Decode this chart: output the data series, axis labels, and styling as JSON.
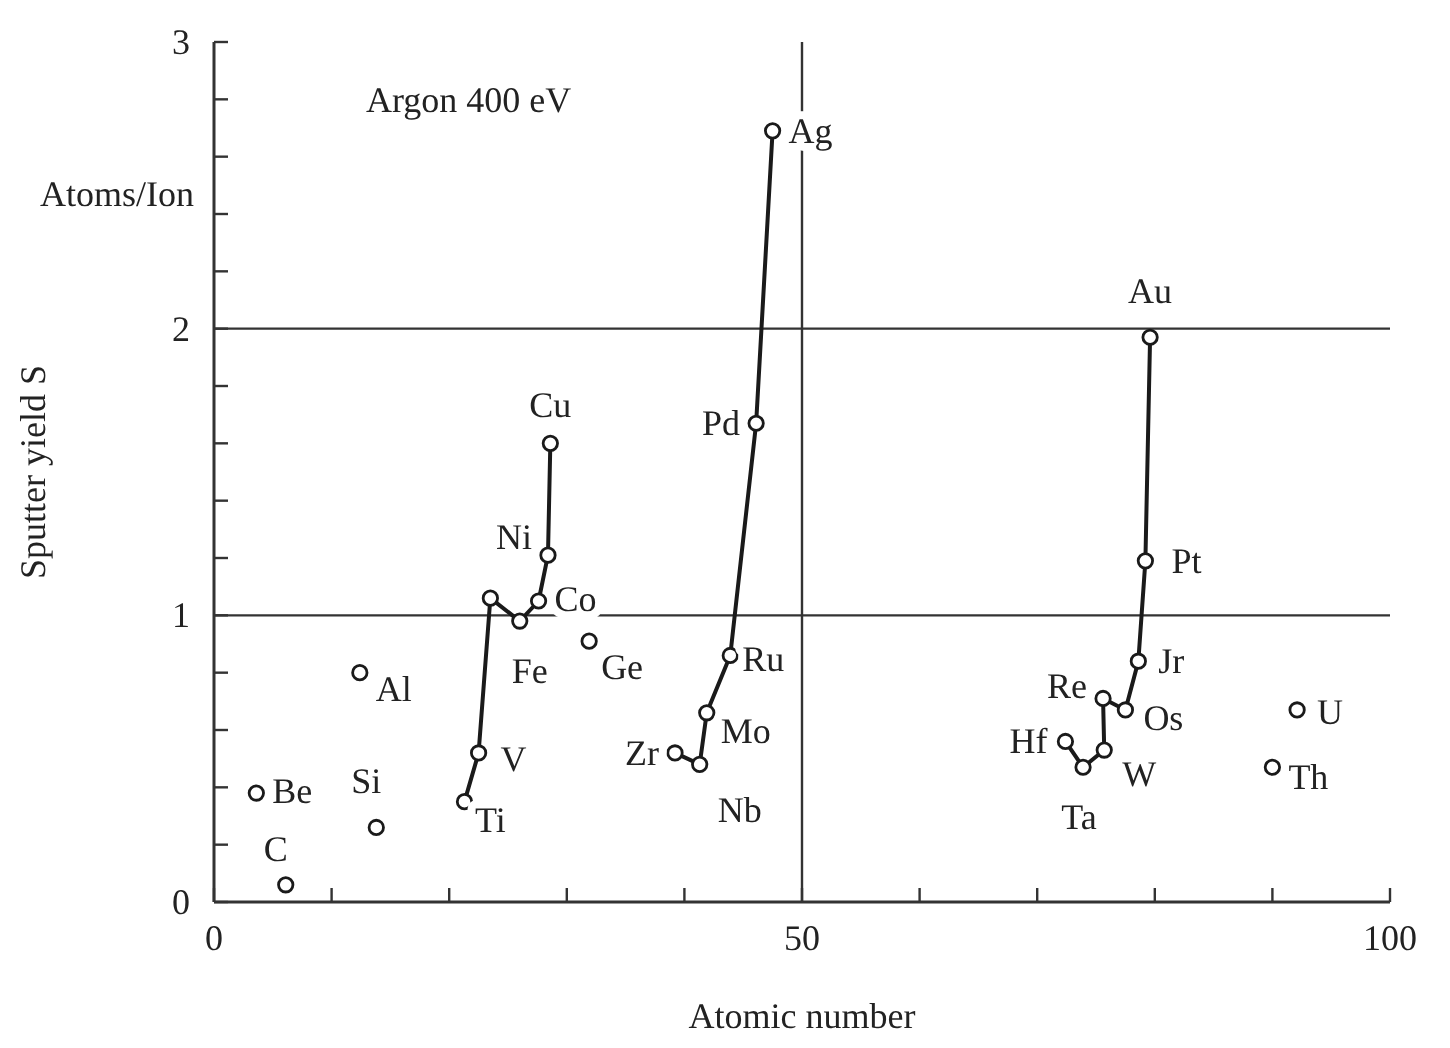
{
  "chart_data": {
    "type": "scatter",
    "xlabel": "Atomic number",
    "ylabel": "Sputter yield S",
    "xlim": [
      0,
      100
    ],
    "ylim": [
      0,
      3
    ],
    "xticks": [
      0,
      {
        "value": 10,
        "label": null
      },
      {
        "value": 20,
        "label": null
      },
      {
        "value": 30,
        "label": null
      },
      {
        "value": 40,
        "label": null
      },
      50,
      {
        "value": 60,
        "label": null
      },
      {
        "value": 70,
        "label": null
      },
      {
        "value": 80,
        "label": null
      },
      {
        "value": 90,
        "label": null
      },
      100
    ],
    "yticks": [
      0,
      {
        "value": 0.2,
        "label": null
      },
      {
        "value": 0.4,
        "label": null
      },
      {
        "value": 0.6,
        "label": null
      },
      {
        "value": 0.8,
        "label": null
      },
      1,
      {
        "value": 1.2,
        "label": null
      },
      {
        "value": 1.4,
        "label": null
      },
      {
        "value": 1.6,
        "label": null
      },
      {
        "value": 1.8,
        "label": null
      },
      2,
      {
        "value": 2.2,
        "label": null
      },
      {
        "value": 2.4,
        "label": null
      },
      {
        "value": 2.6,
        "label": null
      },
      {
        "value": 2.8,
        "label": null
      },
      3
    ],
    "grid": true,
    "marker": "circle",
    "line_style": "solid",
    "series": [
      {
        "type": "line",
        "color": "#1a1a1a",
        "x": [
          21.3,
          22.5,
          23.5,
          26.0,
          27.6,
          28.4,
          28.6
        ],
        "values": [
          0.35,
          0.52,
          1.06,
          0.98,
          1.05,
          1.21,
          1.6
        ]
      },
      {
        "type": "line",
        "color": "#1a1a1a",
        "x": [
          39.2,
          41.3,
          41.9,
          43.9,
          46.1,
          47.5
        ],
        "values": [
          0.52,
          0.48,
          0.66,
          0.86,
          1.67,
          2.69
        ]
      },
      {
        "type": "line",
        "color": "#1a1a1a",
        "x": [
          72.4,
          73.9,
          75.7,
          75.6,
          77.5,
          78.6,
          79.2,
          79.6
        ],
        "values": [
          0.56,
          0.47,
          0.53,
          0.71,
          0.67,
          0.84,
          1.19,
          1.97
        ]
      },
      {
        "color": "#1a1a1a",
        "x": [
          3.6,
          6.1,
          12.4,
          13.8,
          31.9,
          90.0,
          92.1
        ],
        "values": [
          0.38,
          0.06,
          0.8,
          0.26,
          0.91,
          0.47,
          0.67
        ]
      }
    ],
    "annotations": [
      "Argon 400 eV",
      "Atoms/Ion",
      {
        "text": "Be",
        "x": 3.6,
        "y": 0.38
      },
      {
        "text": "C",
        "x": 6.1,
        "y": 0.06
      },
      {
        "text": "Al",
        "x": 12.4,
        "y": 0.8
      },
      {
        "text": "Si",
        "x": 13.8,
        "y": 0.26
      },
      {
        "text": "Ti",
        "x": 21.3,
        "y": 0.35
      },
      {
        "text": "V",
        "x": 22.5,
        "y": 0.52
      },
      {
        "text": "Fe",
        "x": 26.0,
        "y": 0.98
      },
      {
        "text": "Co",
        "x": 27.6,
        "y": 1.05
      },
      {
        "text": "Ni",
        "x": 28.4,
        "y": 1.21
      },
      {
        "text": "Cu",
        "x": 28.6,
        "y": 1.6
      },
      {
        "text": "Ge",
        "x": 31.9,
        "y": 0.91
      },
      {
        "text": "Zr",
        "x": 39.2,
        "y": 0.52
      },
      {
        "text": "Nb",
        "x": 41.3,
        "y": 0.48
      },
      {
        "text": "Mo",
        "x": 41.9,
        "y": 0.66
      },
      {
        "text": "Ru",
        "x": 43.9,
        "y": 0.86
      },
      {
        "text": "Pd",
        "x": 46.1,
        "y": 1.67
      },
      {
        "text": "Ag",
        "x": 47.5,
        "y": 2.69
      },
      {
        "text": "Hf",
        "x": 72.4,
        "y": 0.56
      },
      {
        "text": "Ta",
        "x": 73.9,
        "y": 0.47
      },
      {
        "text": "W",
        "x": 75.7,
        "y": 0.53
      },
      {
        "text": "Re",
        "x": 75.6,
        "y": 0.71
      },
      {
        "text": "Os",
        "x": 77.5,
        "y": 0.67
      },
      {
        "text": "Jr",
        "x": 78.6,
        "y": 0.84
      },
      {
        "text": "Pt",
        "x": 79.2,
        "y": 1.19
      },
      {
        "text": "Au",
        "x": 79.6,
        "y": 1.97
      },
      {
        "text": "Th",
        "x": 90.0,
        "y": 0.47
      },
      {
        "text": "U",
        "x": 92.1,
        "y": 0.67
      }
    ]
  }
}
